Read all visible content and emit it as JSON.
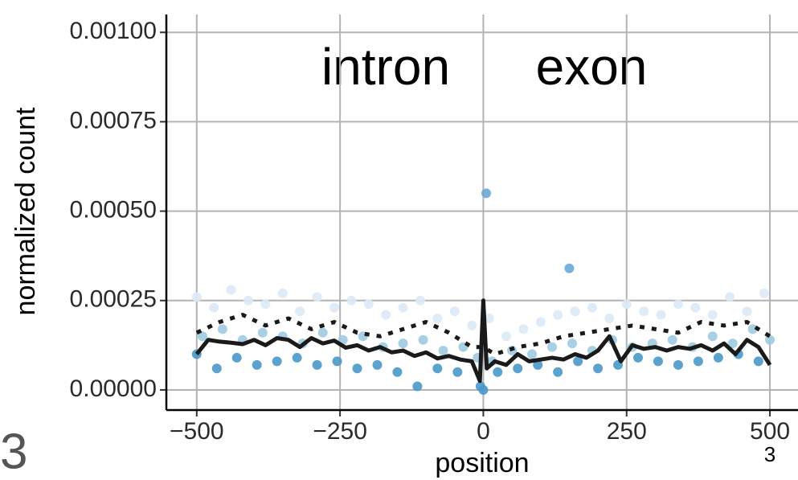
{
  "chart_data": {
    "type": "scatter",
    "x_label": "position",
    "y_label": "normalized count",
    "annotations": [
      "intron",
      "exon"
    ],
    "panel_label": "3",
    "page_number": "3",
    "xlim": [
      -553,
      549
    ],
    "ylim": [
      -5.63e-05,
      0.00105
    ],
    "xticks": [
      {
        "value": -500,
        "label": "−500"
      },
      {
        "value": -250,
        "label": "−250"
      },
      0,
      250,
      500
    ],
    "yticks": [
      {
        "value": 0,
        "label": "0.00000"
      },
      {
        "value": 0.00025,
        "label": "0.00025"
      },
      {
        "value": 0.0005,
        "label": "0.00050"
      },
      {
        "value": 0.00075,
        "label": "0.00075"
      },
      {
        "value": 0.001,
        "label": "0.00100"
      }
    ],
    "grid": true,
    "series": [
      {
        "mode": "markers",
        "color": "#dbe9f6",
        "x": [
          -500,
          -470,
          -440,
          -410,
          -380,
          -350,
          -320,
          -290,
          -260,
          -230,
          -200,
          -170,
          -140,
          -110,
          -80,
          -50,
          -20,
          10,
          40,
          70,
          100,
          130,
          160,
          190,
          220,
          250,
          280,
          310,
          340,
          370,
          400,
          430,
          460,
          490
        ],
        "values": [
          0.00026,
          0.00023,
          0.00028,
          0.00025,
          0.00024,
          0.00027,
          0.00022,
          0.00026,
          0.00023,
          0.00025,
          0.00024,
          0.00021,
          0.00023,
          0.00025,
          0.0002,
          0.00022,
          0.00018,
          0.0002,
          0.00015,
          0.00017,
          0.00019,
          0.00021,
          0.00022,
          0.00023,
          0.0002,
          0.00024,
          0.00022,
          0.00021,
          0.00024,
          0.00023,
          0.00021,
          0.00026,
          0.00022,
          0.00027
        ]
      },
      {
        "mode": "markers",
        "color": "#9ecae1",
        "x": [
          -490,
          -455,
          -420,
          -385,
          -350,
          -315,
          -280,
          -245,
          -210,
          -175,
          -140,
          -105,
          -70,
          -35,
          -10,
          15,
          50,
          85,
          120,
          155,
          190,
          225,
          260,
          295,
          330,
          365,
          400,
          435,
          470,
          500
        ],
        "values": [
          0.00015,
          0.00017,
          0.00014,
          0.00016,
          0.00015,
          0.00013,
          0.00016,
          0.00014,
          0.00015,
          0.00012,
          0.00013,
          0.00014,
          0.00011,
          0.00012,
          9e-05,
          8e-05,
          0.00011,
          0.0001,
          0.00012,
          0.00013,
          0.00011,
          0.00014,
          0.00012,
          0.00013,
          0.00014,
          0.00012,
          0.00015,
          0.00013,
          0.00017,
          0.00014
        ]
      },
      {
        "mode": "markers",
        "color": "#4a98c9",
        "x": [
          -500,
          -465,
          -430,
          -395,
          -360,
          -325,
          -290,
          -255,
          -220,
          -185,
          -150,
          -115,
          -80,
          -45,
          -5,
          0,
          25,
          60,
          95,
          130,
          165,
          200,
          235,
          270,
          305,
          340,
          375,
          410,
          445,
          480
        ],
        "values": [
          0.0001,
          6e-05,
          9e-05,
          7e-05,
          8e-05,
          9e-05,
          7e-05,
          8e-05,
          6e-05,
          7e-05,
          5e-05,
          1e-05,
          6e-05,
          5e-05,
          1e-05,
          0,
          5e-05,
          6e-05,
          7e-05,
          5e-05,
          8e-05,
          6e-05,
          7e-05,
          9e-05,
          8e-05,
          7e-05,
          8e-05,
          9e-05,
          0.0001,
          8e-05
        ]
      },
      {
        "mode": "markers",
        "color": "#6aaad4",
        "x": [
          5,
          150
        ],
        "values": [
          0.00055,
          0.00034
        ]
      },
      {
        "mode": "line",
        "dash": "dotted",
        "color": "#1a1a1a",
        "x": [
          -500,
          -460,
          -420,
          -380,
          -340,
          -300,
          -260,
          -220,
          -180,
          -140,
          -100,
          -60,
          -20,
          0,
          20,
          60,
          100,
          140,
          180,
          220,
          260,
          300,
          340,
          380,
          420,
          460,
          500
        ],
        "values": [
          0.00016,
          0.00019,
          0.00021,
          0.00018,
          0.0002,
          0.00017,
          0.00019,
          0.00016,
          0.00015,
          0.00017,
          0.00019,
          0.00016,
          0.00012,
          0.00012,
          0.0001,
          0.00012,
          0.00013,
          0.00015,
          0.00016,
          0.00017,
          0.00018,
          0.00017,
          0.00016,
          0.00019,
          0.00018,
          0.00019,
          0.00015
        ]
      },
      {
        "mode": "line",
        "dash": "solid",
        "color": "#1a1a1a",
        "x": [
          -500,
          -480,
          -460,
          -440,
          -420,
          -400,
          -380,
          -360,
          -340,
          -320,
          -300,
          -280,
          -260,
          -240,
          -220,
          -200,
          -180,
          -160,
          -140,
          -120,
          -100,
          -80,
          -60,
          -40,
          -20,
          -6,
          0,
          6,
          20,
          40,
          60,
          80,
          100,
          120,
          140,
          160,
          180,
          200,
          220,
          240,
          260,
          280,
          300,
          320,
          340,
          360,
          380,
          400,
          420,
          440,
          460,
          480,
          500
        ],
        "values": [
          0.0001,
          0.00014,
          0.000135,
          0.000132,
          0.000128,
          0.00014,
          0.000125,
          0.000145,
          0.00014,
          0.00012,
          0.000145,
          0.00013,
          0.000138,
          0.000118,
          0.000125,
          0.00011,
          0.00012,
          0.000105,
          0.00011,
          9.5e-05,
          0.000105,
          8.8e-05,
          9.5e-05,
          8.5e-05,
          8e-05,
          2.5e-05,
          0.00025,
          6e-05,
          8e-05,
          7e-05,
          0.0001,
          8e-05,
          8.5e-05,
          9e-05,
          8.5e-05,
          0.0001,
          9e-05,
          0.00011,
          0.00015,
          8e-05,
          0.000125,
          0.000115,
          0.00012,
          0.00011,
          0.00012,
          0.000115,
          0.000125,
          0.00011,
          0.00013,
          0.0001,
          0.00014,
          0.00012,
          7e-05
        ]
      }
    ]
  }
}
